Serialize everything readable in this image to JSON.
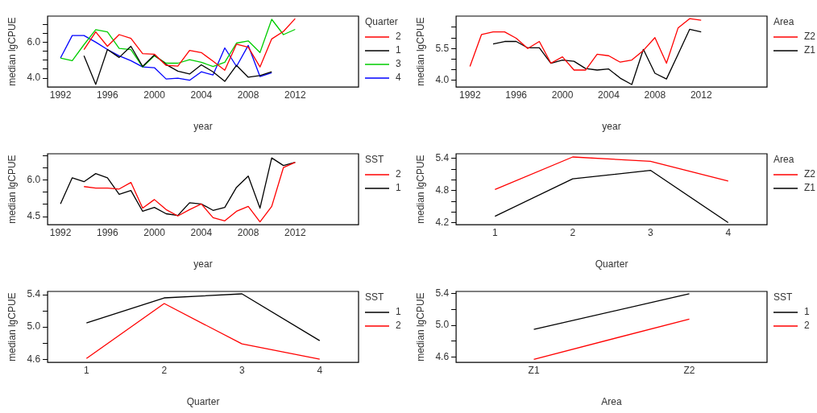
{
  "chart_data": [
    {
      "type": "line",
      "xlabel": "year",
      "ylabel": "median lgCPUE",
      "legend_title": "Quarter",
      "legend": "right",
      "grid": false,
      "marker": "none",
      "line_style": "solid",
      "x": [
        1992,
        1993,
        1994,
        1995,
        1996,
        1997,
        1998,
        1999,
        2000,
        2001,
        2002,
        2003,
        2004,
        2005,
        2006,
        2007,
        2008,
        2009,
        2010,
        2011,
        2012
      ],
      "xlim": [
        1990.9,
        2017.4
      ],
      "xticks": [
        1992,
        1996,
        2000,
        2004,
        2008,
        2012
      ],
      "ylim": [
        3.5,
        7.45
      ],
      "yticks": [
        {
          "value": 4,
          "label": "4.0"
        },
        {
          "value": 4.5,
          "label": null
        },
        {
          "value": 5,
          "label": null
        },
        {
          "value": 5.5,
          "label": null
        },
        {
          "value": 6,
          "label": "6.0"
        },
        {
          "value": 6.5,
          "label": null
        },
        {
          "value": 7,
          "label": null
        }
      ],
      "series": [
        {
          "name": "2",
          "color": "#ff0000",
          "values": [
            null,
            null,
            5.59,
            6.57,
            5.77,
            6.42,
            6.21,
            5.36,
            5.33,
            4.71,
            4.67,
            5.54,
            5.42,
            4.94,
            4.44,
            5.89,
            5.72,
            4.62,
            6.18,
            6.6,
            7.31
          ]
        },
        {
          "name": "1",
          "color": "#000000",
          "values": [
            null,
            null,
            5.24,
            3.65,
            5.59,
            5.15,
            5.77,
            4.65,
            5.29,
            4.76,
            4.39,
            4.23,
            4.74,
            4.35,
            3.82,
            4.71,
            4.05,
            4.14,
            4.35,
            null,
            null
          ]
        },
        {
          "name": "3",
          "color": "#00cd00",
          "values": [
            5.12,
            4.97,
            5.86,
            6.69,
            6.57,
            5.65,
            5.59,
            4.62,
            5.24,
            4.83,
            4.83,
            5.03,
            4.88,
            4.65,
            4.88,
            5.95,
            6.07,
            5.42,
            7.27,
            6.42,
            6.71
          ]
        },
        {
          "name": "4",
          "color": "#0000ff",
          "values": [
            5.12,
            6.37,
            6.37,
            6.0,
            5.59,
            5.24,
            4.97,
            4.62,
            4.58,
            3.95,
            4.0,
            3.88,
            4.35,
            4.18,
            5.68,
            4.65,
            5.82,
            4.09,
            4.3,
            null,
            null
          ]
        }
      ]
    },
    {
      "type": "line",
      "xlabel": "year",
      "ylabel": "median lgCPUE",
      "legend_title": "Area",
      "legend": "right",
      "grid": false,
      "marker": "none",
      "line_style": "solid",
      "x": [
        1992,
        1993,
        1994,
        1995,
        1996,
        1997,
        1998,
        1999,
        2000,
        2001,
        2002,
        2003,
        2004,
        2005,
        2006,
        2007,
        2008,
        2009,
        2010,
        2011,
        2012
      ],
      "xlim": [
        1990.8,
        2017.7
      ],
      "xticks": [
        1992,
        1996,
        2000,
        2004,
        2008,
        2012
      ],
      "ylim": [
        3.69,
        7.02
      ],
      "yticks": [
        {
          "value": 4,
          "label": "4.0"
        },
        {
          "value": 4.5,
          "label": null
        },
        {
          "value": 5,
          "label": null
        },
        {
          "value": 5.5,
          "label": "5.5"
        },
        {
          "value": 6,
          "label": null
        },
        {
          "value": 6.5,
          "label": null
        }
      ],
      "series": [
        {
          "name": "Z2",
          "color": "#ff0000",
          "values": [
            4.66,
            6.16,
            6.28,
            6.28,
            5.98,
            5.5,
            5.83,
            4.81,
            5.11,
            4.49,
            4.49,
            5.23,
            5.16,
            4.86,
            4.96,
            5.41,
            6.01,
            4.81,
            6.46,
            6.9,
            6.83
          ]
        },
        {
          "name": "Z1",
          "color": "#000000",
          "values": [
            null,
            null,
            5.71,
            5.83,
            5.83,
            5.53,
            5.53,
            4.81,
            4.96,
            4.9,
            4.56,
            4.49,
            4.54,
            4.11,
            3.81,
            5.46,
            4.34,
            4.07,
            5.23,
            6.4,
            6.28
          ]
        }
      ]
    },
    {
      "type": "line",
      "xlabel": "year",
      "ylabel": "median lgCPUE",
      "legend_title": "SST",
      "legend": "right",
      "grid": false,
      "marker": "none",
      "line_style": "solid",
      "x": [
        1992,
        1993,
        1994,
        1995,
        1996,
        1997,
        1998,
        1999,
        2000,
        2001,
        2002,
        2003,
        2004,
        2005,
        2006,
        2007,
        2008,
        2009,
        2010,
        2011,
        2012
      ],
      "xlim": [
        1990.9,
        2017.4
      ],
      "xticks": [
        1992,
        1996,
        2000,
        2004,
        2008,
        2012
      ],
      "ylim": [
        4.17,
        7.07
      ],
      "yticks": [
        {
          "value": 4.5,
          "label": "4.5"
        },
        {
          "value": 5,
          "label": null
        },
        {
          "value": 5.5,
          "label": null
        },
        {
          "value": 6,
          "label": "6.0"
        },
        {
          "value": 6.5,
          "label": null
        },
        {
          "value": 7,
          "label": null
        }
      ],
      "series": [
        {
          "name": "2",
          "color": "#ff0000",
          "values": [
            null,
            null,
            5.73,
            5.67,
            5.67,
            5.63,
            5.9,
            4.85,
            5.2,
            4.79,
            4.53,
            4.79,
            5.02,
            4.46,
            4.33,
            4.72,
            4.92,
            4.29,
            4.92,
            6.51,
            6.72
          ]
        },
        {
          "name": "1",
          "color": "#000000",
          "values": [
            5.02,
            6.09,
            5.93,
            6.26,
            6.09,
            5.41,
            5.57,
            4.72,
            4.88,
            4.62,
            4.55,
            5.07,
            5.02,
            4.76,
            4.88,
            5.7,
            6.16,
            4.85,
            6.9,
            6.59,
            6.72
          ]
        }
      ]
    },
    {
      "type": "line",
      "xlabel": "Quarter",
      "ylabel": "median lgCPUE",
      "legend_title": "Area",
      "legend": "right",
      "grid": false,
      "marker": "none",
      "line_style": "solid",
      "categories": [
        "1",
        "2",
        "3",
        "4"
      ],
      "ylim": [
        4.16,
        5.49
      ],
      "yticks": [
        {
          "value": 4.2,
          "label": "4.2"
        },
        {
          "value": 4.4,
          "label": null
        },
        {
          "value": 4.6,
          "label": null
        },
        {
          "value": 4.8,
          "label": "4.8"
        },
        {
          "value": 5,
          "label": null
        },
        {
          "value": 5.2,
          "label": null
        },
        {
          "value": 5.4,
          "label": "5.4"
        }
      ],
      "series": [
        {
          "name": "Z2",
          "color": "#ff0000",
          "values": [
            4.82,
            5.43,
            5.35,
            4.98
          ]
        },
        {
          "name": "Z1",
          "color": "#000000",
          "values": [
            4.32,
            5.02,
            5.18,
            4.2
          ]
        }
      ]
    },
    {
      "type": "line",
      "xlabel": "Quarter",
      "ylabel": "median lgCPUE",
      "legend_title": "SST",
      "legend": "right",
      "grid": false,
      "marker": "none",
      "line_style": "solid",
      "categories": [
        "1",
        "2",
        "3",
        "4"
      ],
      "ylim": [
        4.56,
        5.44
      ],
      "yticks": [
        {
          "value": 4.6,
          "label": "4.6"
        },
        {
          "value": 4.8,
          "label": null
        },
        {
          "value": 5,
          "label": "5.0"
        },
        {
          "value": 5.2,
          "label": null
        },
        {
          "value": 5.4,
          "label": "5.4"
        }
      ],
      "series": [
        {
          "name": "1",
          "color": "#000000",
          "values": [
            5.05,
            5.36,
            5.41,
            4.83
          ]
        },
        {
          "name": "2",
          "color": "#ff0000",
          "values": [
            4.61,
            5.29,
            4.79,
            4.6
          ]
        }
      ]
    },
    {
      "type": "line",
      "xlabel": "Area",
      "ylabel": "median lgCPUE",
      "legend_title": "SST",
      "legend": "right",
      "grid": false,
      "marker": "none",
      "line_style": "solid",
      "categories": [
        "Z1",
        "Z2"
      ],
      "ylim": [
        4.53,
        5.43
      ],
      "yticks": [
        {
          "value": 4.6,
          "label": "4.6"
        },
        {
          "value": 4.8,
          "label": null
        },
        {
          "value": 5,
          "label": "5.0"
        },
        {
          "value": 5.2,
          "label": null
        },
        {
          "value": 5.4,
          "label": "5.4"
        }
      ],
      "series": [
        {
          "name": "1",
          "color": "#000000",
          "values": [
            4.95,
            5.4
          ]
        },
        {
          "name": "2",
          "color": "#ff0000",
          "values": [
            4.57,
            5.08
          ]
        }
      ]
    }
  ]
}
